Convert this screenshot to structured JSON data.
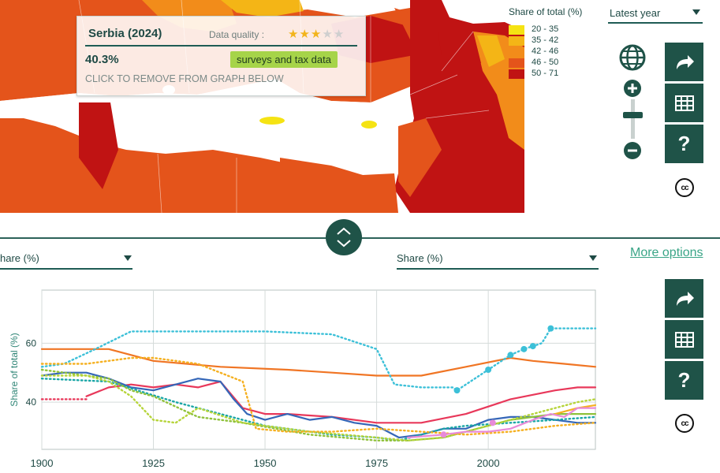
{
  "tooltip": {
    "country": "Serbia (2024)",
    "data_quality_label": "Data quality :",
    "stars_filled": 3,
    "stars_total": 5,
    "value": "40.3%",
    "source": "surveys and tax data",
    "remove_hint": "CLICK TO REMOVE FROM GRAPH BELOW"
  },
  "legend": {
    "title": "Share of total (%)",
    "items": [
      {
        "label": "20 - 35",
        "color": "#f5e313"
      },
      {
        "label": "35 - 42",
        "color": "#f4b516"
      },
      {
        "label": "42 - 46",
        "color": "#f28c1a"
      },
      {
        "label": "46 - 50",
        "color": "#e4541b"
      },
      {
        "label": "50 - 71",
        "color": "#c01313"
      }
    ]
  },
  "year_select": {
    "value": "Latest year"
  },
  "map_tools": {
    "globe": "globe-icon",
    "zoom_in": "plus-icon",
    "zoom_out": "minus-icon",
    "share": "share-arrow-icon",
    "table": "table-icon",
    "help": "?",
    "license": "cc"
  },
  "chart_tools": {
    "share": "share-arrow-icon",
    "table": "table-icon",
    "help": "?",
    "license": "cc"
  },
  "controls": {
    "left_select": "hare (%)",
    "right_select": "Share (%)",
    "more_options": "More options"
  },
  "colors": {
    "accent": "#1f5348",
    "link": "#3aa587"
  },
  "chart_data": {
    "type": "line",
    "ylabel": "Share of total (%)",
    "xlim": [
      1900,
      2024
    ],
    "ylim": [
      24,
      78
    ],
    "x_ticks": [
      1900,
      1925,
      1950,
      1975,
      2000
    ],
    "y_ticks": [
      40,
      60
    ],
    "grid": true,
    "series": [
      {
        "color": "#f07524",
        "style": "solid",
        "x": [
          1900,
          1915,
          1925,
          1940,
          1955,
          1965,
          1975,
          1985,
          1995,
          2005,
          2010,
          2017,
          2024
        ],
        "y": [
          58,
          58,
          54,
          52,
          51,
          50,
          49,
          49,
          52,
          55,
          54,
          53,
          52
        ]
      },
      {
        "color": "#3cc0d8",
        "style": "dotted",
        "x": [
          1900,
          1905,
          1912,
          1920,
          1935,
          1950,
          1965,
          1975,
          1979,
          1985,
          1992,
          1993,
          2000,
          2005,
          2008,
          2012,
          2014,
          2020,
          2024
        ],
        "y": [
          52,
          53,
          58,
          64,
          64,
          64,
          63,
          58,
          46,
          45,
          45,
          44,
          51,
          56,
          58,
          60,
          65,
          65,
          65
        ]
      },
      {
        "color": "#3cc0d8",
        "style": "markers",
        "x": [
          1993,
          2000,
          2005,
          2008,
          2010,
          2014
        ],
        "y": [
          44,
          51,
          56,
          58,
          59,
          65
        ]
      },
      {
        "color": "#e8385a",
        "style": "dotted",
        "x": [
          1900,
          1905,
          1910
        ],
        "y": [
          41,
          41,
          41
        ]
      },
      {
        "color": "#e8385a",
        "style": "solid",
        "x": [
          1910,
          1915,
          1920,
          1925,
          1930,
          1935,
          1940,
          1945,
          1950,
          1955,
          1965,
          1975,
          1985,
          1995,
          2005,
          2015,
          2020,
          2024
        ],
        "y": [
          42,
          45,
          46,
          45,
          46,
          45,
          47,
          38,
          36,
          36,
          35,
          33,
          33,
          36,
          41,
          44,
          45,
          45
        ]
      },
      {
        "color": "#3567b8",
        "style": "solid",
        "x": [
          1900,
          1905,
          1910,
          1915,
          1920,
          1925,
          1930,
          1935,
          1940,
          1943,
          1946,
          1950,
          1955,
          1960,
          1965,
          1970,
          1975,
          1980,
          1985,
          1990,
          1995,
          2000,
          2005,
          2010,
          2015,
          2020,
          2024
        ],
        "y": [
          49,
          50,
          50,
          48,
          45,
          44,
          46,
          48,
          47,
          41,
          36,
          34,
          36,
          34,
          35,
          33,
          32,
          28,
          29,
          31,
          31,
          34,
          35,
          35,
          34,
          33,
          33
        ]
      },
      {
        "color": "#1aa6a6",
        "style": "dotted",
        "x": [
          1900,
          1915,
          1930,
          1950,
          1965,
          1975,
          1980,
          1985,
          1990,
          1995,
          2005,
          2015,
          2024
        ],
        "y": [
          48,
          47,
          40,
          32,
          29,
          28,
          27,
          29,
          31,
          32,
          33,
          34,
          35
        ]
      },
      {
        "color": "#8fc13a",
        "style": "dotted",
        "x": [
          1900,
          1905,
          1915,
          1920,
          1925,
          1935,
          1945,
          1960,
          1975,
          1982
        ],
        "y": [
          51,
          50,
          48,
          44,
          42,
          35,
          33,
          29,
          27,
          27
        ]
      },
      {
        "color": "#8fc13a",
        "style": "solid",
        "x": [
          1982,
          1990,
          1995,
          2000,
          2005,
          2010,
          2015,
          2020,
          2024
        ],
        "y": [
          27,
          28,
          30,
          32,
          34,
          35,
          36,
          36,
          36
        ]
      },
      {
        "color": "#b6d43a",
        "style": "dotted",
        "x": [
          1900,
          1910,
          1915,
          1920,
          1925,
          1930,
          1935,
          1945,
          1960,
          1975,
          1982,
          1990,
          1995,
          2000,
          2005,
          2010,
          2015,
          2020,
          2024
        ],
        "y": [
          49,
          49,
          47,
          42,
          34,
          33,
          38,
          33,
          30,
          28,
          27,
          28,
          30,
          32,
          34,
          36,
          38,
          40,
          41
        ]
      },
      {
        "color": "#f5b020",
        "style": "dotted",
        "x": [
          1900,
          1910,
          1920,
          1925,
          1935,
          1945,
          1948,
          1955,
          1965,
          1975,
          1985,
          1995,
          2005,
          2015,
          2024
        ],
        "y": [
          53,
          53,
          55,
          55,
          53,
          47,
          31,
          30,
          30,
          31,
          30,
          29,
          30,
          32,
          33
        ]
      },
      {
        "color": "#f5b020",
        "style": "solid",
        "x": [
          2015,
          2020,
          2024
        ],
        "y": [
          36,
          38,
          39
        ]
      },
      {
        "color": "#e88ad8",
        "style": "solid",
        "x": [
          1982,
          1990,
          1995,
          2000,
          2005,
          2010,
          2014,
          2017,
          2020,
          2024
        ],
        "y": [
          28,
          29,
          30,
          30,
          31,
          34,
          36,
          35,
          38,
          38
        ]
      },
      {
        "color": "#e88ad8",
        "style": "markers",
        "x": [
          1990,
          2001
        ],
        "y": [
          29,
          33
        ]
      }
    ]
  }
}
